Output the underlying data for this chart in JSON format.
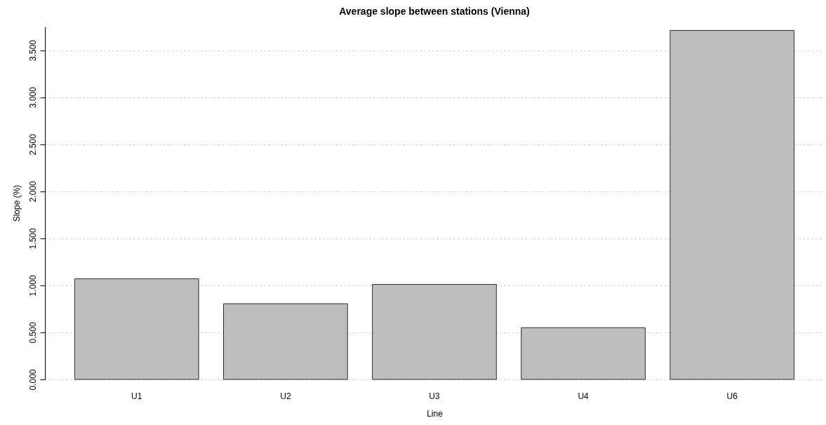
{
  "chart_data": {
    "type": "bar",
    "title": "Average slope between stations (Vienna)",
    "xlabel": "Line",
    "ylabel": "Slope (%)",
    "categories": [
      "U1",
      "U2",
      "U3",
      "U4",
      "U6"
    ],
    "values": [
      1.07,
      0.805,
      1.01,
      0.55,
      3.71
    ],
    "color": "#bebebe",
    "ylim": [
      0,
      3.75
    ],
    "yticks": [
      {
        "value": 0,
        "label": "0.000"
      },
      {
        "value": 0.5,
        "label": "0.500"
      },
      {
        "value": 1,
        "label": "1.000"
      },
      {
        "value": 1.5,
        "label": "1.500"
      },
      {
        "value": 2,
        "label": "2.000"
      },
      {
        "value": 2.5,
        "label": "2.500"
      },
      {
        "value": 3,
        "label": "3.000"
      },
      {
        "value": 3.5,
        "label": "3.500"
      }
    ],
    "grid": "y"
  }
}
